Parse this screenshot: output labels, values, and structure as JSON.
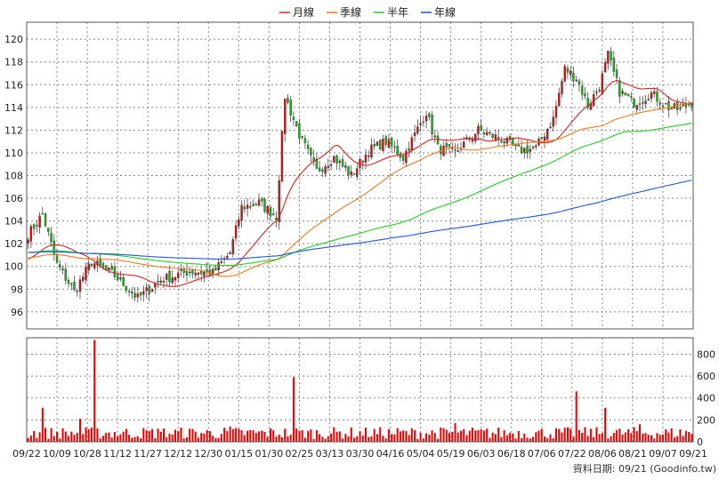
{
  "chart_data": {
    "type": "candlestick+volume",
    "legend": [
      {
        "name": "月線",
        "color": "#dd2222"
      },
      {
        "name": "季線",
        "color": "#f07a1a"
      },
      {
        "name": "半年",
        "color": "#22cc22"
      },
      {
        "name": "年線",
        "color": "#2255dd"
      }
    ],
    "price_axis": {
      "ticks": [
        "96",
        "98",
        "100",
        "102",
        "104",
        "106",
        "108",
        "110",
        "112",
        "114",
        "116",
        "118",
        "120"
      ],
      "ylim": [
        94.5,
        121.5
      ]
    },
    "volume_axis": {
      "ticks": [
        "0",
        "200",
        "400",
        "600",
        "800"
      ],
      "ylim": [
        0,
        950
      ]
    },
    "x_ticks": [
      "09/22",
      "10/09",
      "10/28",
      "11/12",
      "11/27",
      "12/12",
      "12/30",
      "01/15",
      "01/30",
      "02/25",
      "03/13",
      "03/30",
      "04/16",
      "05/04",
      "05/19",
      "06/03",
      "06/18",
      "07/06",
      "07/22",
      "08/06",
      "08/21",
      "09/07",
      "09/21"
    ],
    "colors": {
      "up": "#dd1111",
      "down": "#11bb11",
      "volume": "#ee0000",
      "grid": "#888888"
    },
    "close_anchors": [
      [
        0,
        102.8
      ],
      [
        5,
        104.6
      ],
      [
        10,
        100.2
      ],
      [
        16,
        97.8
      ],
      [
        22,
        100.4
      ],
      [
        30,
        99.2
      ],
      [
        38,
        97.2
      ],
      [
        46,
        98.8
      ],
      [
        56,
        99.6
      ],
      [
        64,
        99.4
      ],
      [
        70,
        101.2
      ],
      [
        74,
        105.2
      ],
      [
        80,
        105.6
      ],
      [
        86,
        104.4
      ],
      [
        89,
        115.0
      ],
      [
        94,
        111.6
      ],
      [
        100,
        108.4
      ],
      [
        106,
        109.6
      ],
      [
        112,
        108.0
      ],
      [
        118,
        110.2
      ],
      [
        124,
        111.0
      ],
      [
        130,
        109.6
      ],
      [
        138,
        113.6
      ],
      [
        142,
        110.4
      ],
      [
        148,
        110.0
      ],
      [
        156,
        112.0
      ],
      [
        164,
        111.2
      ],
      [
        170,
        110.2
      ],
      [
        176,
        110.4
      ],
      [
        182,
        113.0
      ],
      [
        186,
        117.4
      ],
      [
        190,
        116.6
      ],
      [
        194,
        114.2
      ],
      [
        198,
        115.8
      ],
      [
        201,
        118.6
      ],
      [
        205,
        115.4
      ],
      [
        210,
        114.4
      ],
      [
        216,
        115.2
      ],
      [
        222,
        114.0
      ],
      [
        226,
        113.8
      ],
      [
        230,
        114.5
      ]
    ],
    "volume_spikes": [
      [
        5,
        310
      ],
      [
        18,
        210
      ],
      [
        23,
        930
      ],
      [
        45,
        120
      ],
      [
        70,
        140
      ],
      [
        92,
        590
      ],
      [
        148,
        170
      ],
      [
        190,
        460
      ],
      [
        200,
        310
      ],
      [
        212,
        160
      ],
      [
        228,
        100
      ]
    ],
    "caption": "資料日期: 09/21  (Goodinfo.tw)"
  }
}
